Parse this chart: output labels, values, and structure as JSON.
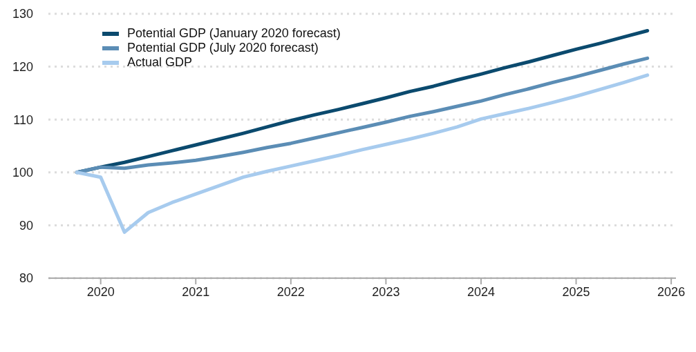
{
  "chart_data": {
    "type": "line",
    "x": [
      2019.75,
      2020,
      2020.25,
      2020.5,
      2020.75,
      2021,
      2021.25,
      2021.5,
      2021.75,
      2022,
      2022.25,
      2022.5,
      2022.75,
      2023,
      2023.25,
      2023.5,
      2023.75,
      2024,
      2024.25,
      2024.5,
      2024.75,
      2025,
      2025.25,
      2025.5,
      2025.75
    ],
    "series": [
      {
        "name": "Potential GDP (January 2020 forecast)",
        "color": "#0b4a6e",
        "values": [
          100,
          101.0,
          101.9,
          103.0,
          104.1,
          105.2,
          106.3,
          107.4,
          108.6,
          109.8,
          110.9,
          111.9,
          113.0,
          114.1,
          115.3,
          116.3,
          117.5,
          118.6,
          119.8,
          120.9,
          122.1,
          123.3,
          124.4,
          125.6,
          126.8
        ]
      },
      {
        "name": "Potential GDP (July 2020 forecast)",
        "color": "#5b8db5",
        "values": [
          100,
          101.0,
          100.8,
          101.4,
          101.8,
          102.3,
          103.0,
          103.8,
          104.7,
          105.5,
          106.5,
          107.5,
          108.5,
          109.5,
          110.6,
          111.5,
          112.5,
          113.5,
          114.7,
          115.8,
          117.0,
          118.1,
          119.3,
          120.5,
          121.6
        ]
      },
      {
        "name": "Actual GDP",
        "color": "#a7cbee",
        "values": [
          100,
          99.1,
          88.7,
          92.4,
          94.3,
          95.9,
          97.5,
          99.1,
          100.2,
          101.2,
          102.2,
          103.2,
          104.3,
          105.3,
          106.3,
          107.4,
          108.6,
          110.1,
          111.1,
          112.1,
          113.2,
          114.4,
          115.7,
          117.0,
          118.4
        ]
      }
    ],
    "xlim": [
      2019.45,
      2026.05
    ],
    "xticks": [
      2020,
      2021,
      2022,
      2023,
      2024,
      2025,
      2026
    ],
    "ylim": [
      80,
      130
    ],
    "yticks": [
      80,
      90,
      100,
      110,
      120,
      130
    ],
    "grid": "y",
    "legend": "top left",
    "marker": "none",
    "line_style": "solid"
  }
}
